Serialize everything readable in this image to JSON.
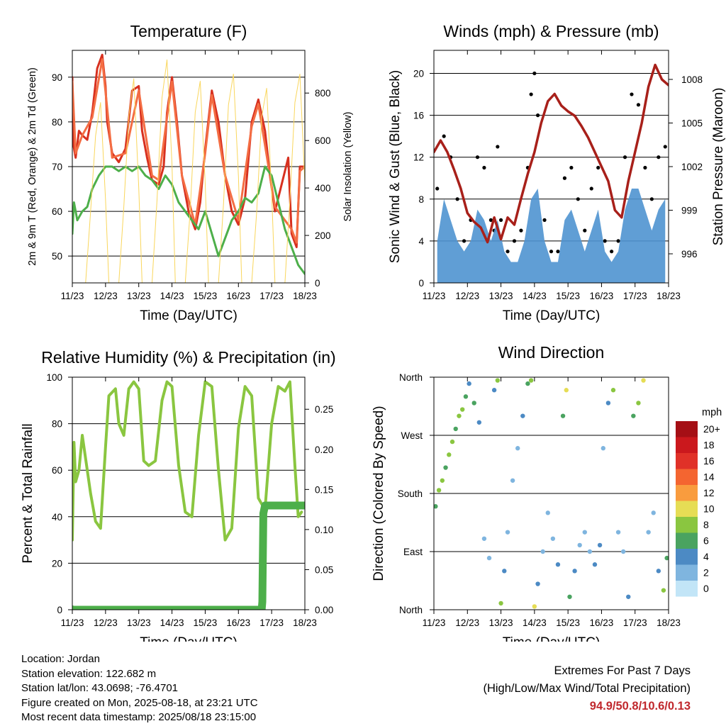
{
  "chart_data": [
    {
      "type": "line",
      "title": "Temperature (F)",
      "xlabel": "Time (Day/UTC)",
      "ylabel": "2m & 9m T (Red, Orange) & 2m Td (Green)",
      "ylabel_right": "Solar Insolation (Yellow)",
      "xticks": [
        "11/23",
        "12/23",
        "13/23",
        "14/23",
        "15/23",
        "16/23",
        "17/23",
        "18/23"
      ],
      "xlim": [
        0,
        7
      ],
      "ylim": [
        44,
        96
      ],
      "yticks": [
        50,
        60,
        70,
        80,
        90
      ],
      "ylim_right": [
        0,
        980
      ],
      "yticks_right": [
        0,
        200,
        400,
        600,
        800
      ],
      "grid_y": [
        50,
        60,
        70,
        80,
        90
      ],
      "series": [
        {
          "name": "2m T",
          "color": "#d7301f",
          "axis": "left",
          "x": [
            0,
            0.03,
            0.1,
            0.2,
            0.3,
            0.45,
            0.6,
            0.75,
            0.9,
            1.0,
            1.05,
            1.2,
            1.4,
            1.6,
            1.8,
            2.0,
            2.1,
            2.25,
            2.4,
            2.6,
            2.75,
            2.85,
            3.0,
            3.15,
            3.3,
            3.5,
            3.7,
            3.85,
            4.0,
            4.2,
            4.4,
            4.6,
            4.8,
            5.0,
            5.2,
            5.4,
            5.6,
            5.8,
            5.95,
            6.1,
            6.3,
            6.5,
            6.6,
            6.75,
            6.85,
            7.0
          ],
          "y": [
            90,
            75,
            72,
            78,
            77,
            76,
            82,
            92,
            95,
            88,
            80,
            73,
            71,
            74,
            87,
            88,
            78,
            72,
            67,
            66,
            70,
            82,
            90,
            80,
            68,
            60,
            56,
            62,
            74,
            87,
            80,
            68,
            60,
            57,
            63,
            80,
            85,
            78,
            68,
            60,
            66,
            72,
            55,
            52,
            70,
            70
          ]
        },
        {
          "name": "9m T",
          "color": "#f46d43",
          "axis": "left",
          "x": [
            0,
            0.1,
            0.3,
            0.6,
            0.9,
            1.2,
            1.6,
            2.0,
            2.4,
            2.6,
            2.85,
            3.0,
            3.3,
            3.7,
            4.0,
            4.2,
            4.6,
            5.0,
            5.4,
            5.6,
            6.1,
            6.6,
            6.75,
            6.85,
            7.0
          ],
          "y": [
            89,
            73,
            77,
            81,
            94,
            72,
            73,
            87,
            68,
            67,
            81,
            89,
            68,
            57,
            73,
            86,
            68,
            58,
            79,
            84,
            61,
            56,
            53,
            69,
            70
          ]
        },
        {
          "name": "2m Td",
          "color": "#4daf4a",
          "axis": "left",
          "x": [
            0,
            0.05,
            0.15,
            0.3,
            0.45,
            0.6,
            0.8,
            1.0,
            1.2,
            1.4,
            1.6,
            1.8,
            2.0,
            2.2,
            2.4,
            2.6,
            2.8,
            3.0,
            3.2,
            3.4,
            3.6,
            3.8,
            4.0,
            4.2,
            4.4,
            4.6,
            4.8,
            5.0,
            5.2,
            5.4,
            5.6,
            5.8,
            6.0,
            6.2,
            6.4,
            6.6,
            6.8,
            7.0
          ],
          "y": [
            55,
            62,
            58,
            60,
            61,
            65,
            68,
            70,
            70,
            69,
            70,
            69,
            70,
            68,
            67,
            65,
            68,
            66,
            62,
            60,
            58,
            56,
            60,
            55,
            50,
            54,
            58,
            60,
            63,
            62,
            64,
            70,
            68,
            62,
            56,
            52,
            48,
            46
          ]
        },
        {
          "name": "Solar Insolation",
          "color": "#f9d65c",
          "axis": "right",
          "x": [
            0.4,
            0.55,
            0.7,
            0.85,
            1.0,
            1.1,
            1.4,
            1.55,
            1.7,
            1.85,
            2.0,
            2.1,
            2.4,
            2.55,
            2.7,
            2.85,
            3.0,
            3.1,
            3.4,
            3.55,
            3.7,
            3.85,
            4.0,
            4.1,
            4.4,
            4.55,
            4.7,
            4.85,
            5.0,
            5.1,
            5.4,
            5.55,
            5.7,
            5.85,
            6.0,
            6.1,
            6.4,
            6.55,
            6.7,
            6.85,
            7.0
          ],
          "y": [
            0,
            300,
            620,
            760,
            350,
            0,
            0,
            320,
            700,
            860,
            400,
            0,
            0,
            350,
            780,
            940,
            500,
            0,
            0,
            310,
            720,
            850,
            420,
            0,
            0,
            330,
            750,
            880,
            450,
            0,
            0,
            300,
            700,
            820,
            380,
            0,
            0,
            350,
            760,
            880,
            420
          ]
        }
      ]
    },
    {
      "type": "line",
      "title": "Winds (mph) & Pressure (mb)",
      "xlabel": "Time (Day/UTC)",
      "ylabel": "Sonic Wind & Gust (Blue, Black)",
      "ylabel_right": "Station Pressure (Maroon)",
      "xticks": [
        "11/23",
        "12/23",
        "13/23",
        "14/23",
        "15/23",
        "16/23",
        "17/23",
        "18/23"
      ],
      "xlim": [
        0,
        7
      ],
      "ylim": [
        0,
        22.2
      ],
      "yticks": [
        0,
        4,
        8,
        12,
        16,
        20
      ],
      "ylim_right": [
        994.0,
        1010.0
      ],
      "yticks_right": [
        996,
        999,
        1002,
        1005,
        1008
      ],
      "grid_y": [
        4,
        8,
        12,
        16,
        20
      ],
      "series": [
        {
          "name": "Gust",
          "color": "#000000",
          "axis": "left",
          "style": "points",
          "x": [
            0.1,
            0.3,
            0.5,
            0.7,
            0.9,
            1.1,
            1.3,
            1.5,
            1.7,
            1.8,
            1.9,
            2.0,
            2.2,
            2.4,
            2.6,
            2.8,
            2.9,
            3.0,
            3.1,
            3.3,
            3.5,
            3.7,
            3.9,
            4.1,
            4.3,
            4.5,
            4.7,
            4.9,
            5.1,
            5.3,
            5.5,
            5.7,
            5.9,
            6.1,
            6.3,
            6.5,
            6.7,
            6.9
          ],
          "y": [
            9,
            14,
            12,
            8,
            4,
            6,
            12,
            11,
            6,
            5,
            13,
            6,
            3,
            4,
            5,
            11,
            18,
            20,
            16,
            6,
            3,
            3,
            10,
            11,
            8,
            5,
            9,
            11,
            4,
            3,
            4,
            12,
            18,
            17,
            11,
            8,
            12,
            13
          ]
        },
        {
          "name": "Sonic Wind",
          "color": "#4f94d0",
          "axis": "left",
          "style": "band",
          "x": [
            0.1,
            0.3,
            0.5,
            0.7,
            0.9,
            1.1,
            1.3,
            1.5,
            1.7,
            1.9,
            2.1,
            2.3,
            2.5,
            2.7,
            2.9,
            3.1,
            3.3,
            3.5,
            3.7,
            3.9,
            4.1,
            4.3,
            4.5,
            4.7,
            4.9,
            5.1,
            5.3,
            5.5,
            5.7,
            5.9,
            6.1,
            6.3,
            6.5,
            6.7,
            6.9
          ],
          "y": [
            4,
            8,
            6,
            4,
            3,
            4,
            7,
            6,
            4,
            6,
            3,
            2,
            2,
            4,
            8,
            9,
            4,
            2,
            2,
            6,
            7,
            5,
            3,
            5,
            7,
            3,
            2,
            3,
            7,
            9,
            9,
            7,
            5,
            7,
            8
          ]
        },
        {
          "name": "Station Pressure",
          "color": "#a8201a",
          "axis": "right",
          "x": [
            0,
            0.2,
            0.4,
            0.6,
            0.8,
            1.0,
            1.2,
            1.4,
            1.6,
            1.8,
            2.0,
            2.2,
            2.4,
            2.6,
            2.8,
            3.0,
            3.2,
            3.4,
            3.6,
            3.8,
            4.0,
            4.2,
            4.4,
            4.6,
            4.8,
            5.0,
            5.2,
            5.4,
            5.6,
            5.8,
            6.0,
            6.2,
            6.4,
            6.6,
            6.8,
            7.0
          ],
          "y": [
            1003.0,
            1003.8,
            1003.0,
            1001.8,
            1000.5,
            998.8,
            998.2,
            997.8,
            996.8,
            998.5,
            997.0,
            998.5,
            998.0,
            999.8,
            1001.5,
            1003.0,
            1005.0,
            1006.5,
            1007.0,
            1006.2,
            1005.8,
            1005.5,
            1004.8,
            1004.0,
            1003.0,
            1002.0,
            1001.0,
            999.0,
            998.5,
            1001.0,
            1003.0,
            1005.0,
            1007.5,
            1009.0,
            1008.0,
            1007.6
          ]
        }
      ]
    },
    {
      "type": "line",
      "title": "Relative Humidity (%) & Precipitation (in)",
      "xlabel": "Time (Day/UTC)",
      "ylabel": "Percent & Total Rainfall",
      "xticks": [
        "11/23",
        "12/23",
        "13/23",
        "14/23",
        "15/23",
        "16/23",
        "17/23",
        "18/23"
      ],
      "xlim": [
        0,
        7
      ],
      "ylim": [
        0,
        100
      ],
      "yticks": [
        0,
        20,
        40,
        60,
        80,
        100
      ],
      "ylim_right": [
        0,
        0.29
      ],
      "yticks_right": [
        "0.00",
        "0.05",
        "0.10",
        "0.15",
        "0.20",
        "0.25"
      ],
      "grid_y": [
        20,
        40,
        60,
        80
      ],
      "series": [
        {
          "name": "Relative Humidity",
          "color": "#8ac640",
          "axis": "left",
          "x": [
            0,
            0.05,
            0.1,
            0.2,
            0.3,
            0.45,
            0.55,
            0.7,
            0.85,
            1.0,
            1.1,
            1.3,
            1.4,
            1.55,
            1.7,
            1.85,
            2.0,
            2.15,
            2.3,
            2.5,
            2.7,
            2.85,
            3.0,
            3.2,
            3.4,
            3.6,
            3.8,
            4.0,
            4.2,
            4.4,
            4.6,
            4.8,
            5.0,
            5.2,
            5.4,
            5.6,
            5.8,
            6.0,
            6.2,
            6.4,
            6.55,
            6.7,
            6.8,
            6.9
          ],
          "y": [
            30,
            72,
            55,
            60,
            75,
            60,
            50,
            38,
            35,
            70,
            92,
            95,
            80,
            75,
            95,
            98,
            95,
            64,
            62,
            64,
            90,
            98,
            96,
            62,
            42,
            40,
            75,
            98,
            96,
            60,
            30,
            35,
            78,
            96,
            92,
            48,
            43,
            80,
            96,
            94,
            98,
            62,
            40,
            42
          ]
        },
        {
          "name": "Total Precipitation",
          "color": "#4daf4a",
          "axis": "right",
          "x": [
            0,
            1,
            2,
            3,
            4,
            5,
            5.7,
            5.72,
            5.75,
            5.8,
            6,
            6.5,
            7.0
          ],
          "y": [
            0.0,
            0.0,
            0.0,
            0.0,
            0.0,
            0.0,
            0.0,
            0.01,
            0.12,
            0.13,
            0.13,
            0.13,
            0.13
          ]
        }
      ]
    },
    {
      "type": "scatter",
      "title": "Wind Direction",
      "xlabel": "Time (Day/UTC)",
      "ylabel": "Direction (Colored By Speed)",
      "xticks": [
        "11/23",
        "12/23",
        "13/23",
        "14/23",
        "15/23",
        "16/23",
        "17/23",
        "18/23"
      ],
      "xlim": [
        0,
        7
      ],
      "ylim": [
        0,
        360
      ],
      "yticks": [
        "North",
        "East",
        "South",
        "West",
        "North"
      ],
      "grid_y": [
        90,
        180,
        270
      ],
      "legend": {
        "title": "mph",
        "labels": [
          "20+",
          "18",
          "16",
          "14",
          "12",
          "10",
          "8",
          "6",
          "4",
          "2",
          "0"
        ],
        "colors": [
          "#a50f15",
          "#cb181d",
          "#e03128",
          "#f46530",
          "#f99c3e",
          "#e6dd55",
          "#8ac640",
          "#4aa360",
          "#4c8ac4",
          "#7fb5df",
          "#c2e5f7"
        ]
      },
      "series": [
        {
          "name": "Wind Direction",
          "style": "points",
          "x": [
            0.05,
            0.15,
            0.25,
            0.35,
            0.45,
            0.55,
            0.65,
            0.75,
            0.85,
            0.95,
            1.05,
            1.2,
            1.35,
            1.5,
            1.65,
            1.8,
            1.9,
            2.0,
            2.1,
            2.2,
            2.35,
            2.5,
            2.65,
            2.8,
            2.9,
            3.0,
            3.1,
            3.25,
            3.4,
            3.55,
            3.7,
            3.85,
            3.95,
            4.05,
            4.2,
            4.35,
            4.5,
            4.65,
            4.8,
            4.95,
            5.05,
            5.2,
            5.35,
            5.5,
            5.65,
            5.8,
            5.95,
            6.1,
            6.25,
            6.4,
            6.55,
            6.7,
            6.85,
            6.95
          ],
          "y": [
            160,
            185,
            200,
            220,
            240,
            260,
            280,
            300,
            310,
            330,
            350,
            320,
            290,
            110,
            80,
            340,
            355,
            10,
            60,
            120,
            200,
            250,
            300,
            350,
            355,
            5,
            40,
            90,
            150,
            110,
            70,
            300,
            340,
            20,
            60,
            100,
            120,
            90,
            70,
            100,
            250,
            320,
            340,
            120,
            90,
            20,
            300,
            320,
            355,
            120,
            150,
            60,
            30,
            80
          ],
          "speed": [
            6,
            7,
            8,
            6,
            8,
            7,
            6,
            8,
            7,
            5,
            4,
            5,
            3,
            2,
            1,
            4,
            8,
            7,
            3,
            2,
            1,
            2,
            3,
            6,
            8,
            10,
            4,
            2,
            1,
            2,
            3,
            5,
            10,
            6,
            3,
            2,
            1,
            2,
            4,
            3,
            1,
            4,
            7,
            2,
            1,
            3,
            5,
            8,
            9,
            2,
            1,
            3,
            8,
            6
          ]
        }
      ]
    }
  ],
  "footer": {
    "location": "Location: Jordan",
    "elevation": "Station elevation: 122.682 m",
    "latlon": "Station lat/lon: 43.0698; -76.4701",
    "created": "Figure created on Mon, 2025-08-18, at 23:21 UTC",
    "recent": "Most recent data timestamp: 2025/08/18 23:15:00",
    "extremes_title": "Extremes For Past 7 Days",
    "extremes_sub": "(High/Low/Max Wind/Total Precipitation)",
    "extremes_values": "94.9/50.8/10.6/0.13"
  }
}
